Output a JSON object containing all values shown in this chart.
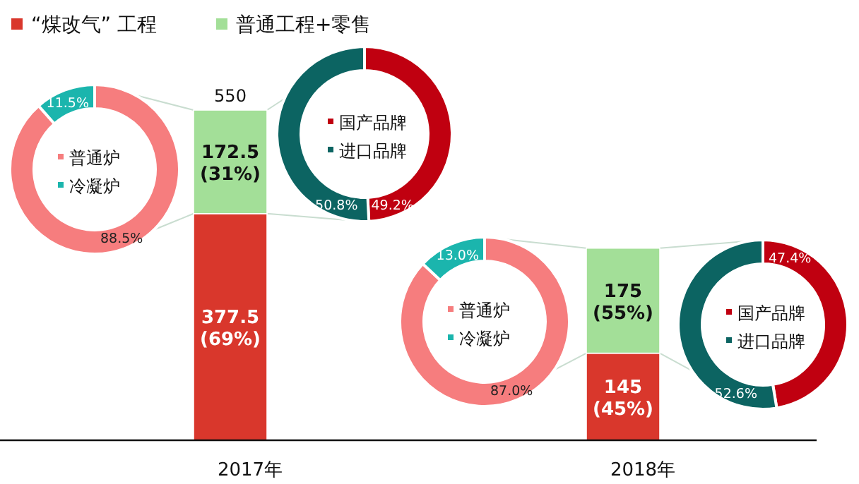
{
  "chart_data": [
    {
      "type": "bar",
      "stacked": true,
      "categories": [
        "2017年",
        "2018年"
      ],
      "legend": "top left",
      "totals": [
        "550",
        null
      ],
      "series": [
        {
          "name": "“煤改气” 工程",
          "color": "#d9372c",
          "values": [
            377.5,
            145
          ],
          "value_labels": [
            "377.5\n(69%)",
            "145\n(45%)"
          ]
        },
        {
          "name": "普通工程+零售",
          "color": "#a3df98",
          "values": [
            172.5,
            175
          ],
          "value_labels": [
            "172.5\n(31%)",
            "175\n(55%)"
          ]
        }
      ]
    },
    {
      "type": "donut",
      "categories": [
        "普通炉",
        "冷凝炉"
      ],
      "values": [
        88.5,
        11.5
      ],
      "colors": [
        "#f67d7e",
        "#1bb5ad"
      ],
      "value_labels": [
        "88.5%",
        "11.5%"
      ],
      "legend": "center"
    },
    {
      "type": "donut",
      "categories": [
        "国产品牌",
        "进口品牌"
      ],
      "values": [
        49.2,
        50.8
      ],
      "colors": [
        "#c00010",
        "#0c6462"
      ],
      "value_labels": [
        "49.2%",
        "50.8%"
      ],
      "legend": "center"
    },
    {
      "type": "donut",
      "categories": [
        "普通炉",
        "冷凝炉"
      ],
      "values": [
        87.0,
        13.0
      ],
      "colors": [
        "#f67d7e",
        "#1bb5ad"
      ],
      "value_labels": [
        "87.0%",
        "13.0%"
      ],
      "legend": "center"
    },
    {
      "type": "donut",
      "categories": [
        "国产品牌",
        "进口品牌"
      ],
      "values": [
        47.4,
        52.6
      ],
      "colors": [
        "#c00010",
        "#0c6462"
      ],
      "value_labels": [
        "47.4%",
        "52.6%"
      ],
      "legend": "center"
    }
  ]
}
